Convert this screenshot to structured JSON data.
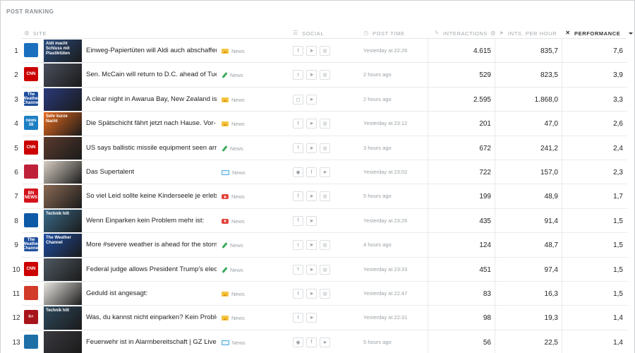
{
  "page_title": "POST RANKING",
  "columns": {
    "site": "SITE",
    "social": "SOCIAL",
    "post_time": "POST TIME",
    "interactions": "INTERACTIONS",
    "ints_per_hour": "INTS. PER HOUR",
    "performance": "PERFORMANCE"
  },
  "header_icons": {
    "site": "globe-icon",
    "social": "signal-icon",
    "post_time": "clock-icon",
    "interactions": "bolt-icon",
    "ints_per_hour": "send-icon",
    "performance": "cross-icon"
  },
  "rows": [
    {
      "rank": "1",
      "logo": "tagesschau",
      "logo_text": "",
      "logo_color": "#1a6fbf",
      "thumb_color": "#2b4c7e",
      "thumb_text": "Aldi macht Schluss mit Plastiktüten",
      "title": "Einweg-Papiertüten will Aldi auch abschaffen.",
      "type": "image",
      "type_label": "News",
      "social": [
        "f",
        "➤",
        "◎"
      ],
      "time": "Yesterday at 22:26",
      "interactions": "4.615",
      "iph": "835,7",
      "performance": "7,6"
    },
    {
      "rank": "2",
      "logo": "cnn",
      "logo_text": "CNN",
      "logo_color": "#cc0000",
      "thumb_color": "#4a4f5c",
      "thumb_text": "",
      "title": "Sen. McCain will return to D.C. ahead of Tues-",
      "type": "text",
      "type_label": "News",
      "social": [
        "t",
        "➤",
        "◎"
      ],
      "time": "2 hours ago",
      "interactions": "529",
      "iph": "823,5",
      "performance": "3,9"
    },
    {
      "rank": "3",
      "logo": "weather",
      "logo_text": "The Weather Channel",
      "logo_color": "#1f4f9c",
      "thumb_color": "#2a3a7a",
      "thumb_text": "",
      "title": "A clear night in Awarua Bay, New Zealand is a",
      "type": "image",
      "type_label": "News",
      "social": [
        "◻",
        "➤"
      ],
      "time": "2 hours ago",
      "interactions": "2.595",
      "iph": "1.868,0",
      "performance": "3,3"
    },
    {
      "rank": "4",
      "logo": "news38",
      "logo_text": "news 38",
      "logo_color": "#1c7fc4",
      "thumb_color": "#e86b1f",
      "thumb_text": "Sehr kurze Nacht",
      "title": "Die Spätschicht fährt jetzt nach Hause. Vor-",
      "type": "image",
      "type_label": "News",
      "social": [
        "f",
        "➤",
        "◎"
      ],
      "time": "Yesterday at 23:12",
      "interactions": "201",
      "iph": "47,0",
      "performance": "2,6"
    },
    {
      "rank": "5",
      "logo": "cnn",
      "logo_text": "CNN",
      "logo_color": "#cc0000",
      "thumb_color": "#5a3b2e",
      "thumb_text": "",
      "title": "US says ballistic missile equipment seen arriv-",
      "type": "text",
      "type_label": "News",
      "social": [
        "t",
        "➤",
        "◎"
      ],
      "time": "3 hours ago",
      "interactions": "672",
      "iph": "241,2",
      "performance": "2,4"
    },
    {
      "rank": "6",
      "logo": "supertalent",
      "logo_text": "",
      "logo_color": "#c0213a",
      "thumb_color": "#d9cfc4",
      "thumb_text": "",
      "title": "Das Supertalent",
      "type": "link",
      "type_label": "News",
      "social": [
        "◉",
        "f",
        "➤"
      ],
      "time": "Yesterday at 23:02",
      "interactions": "722",
      "iph": "157,0",
      "performance": "2,3"
    },
    {
      "rank": "7",
      "logo": "bildnews",
      "logo_text": "BN NEWS",
      "logo_color": "#d4121a",
      "thumb_color": "#8a6a55",
      "thumb_text": "",
      "title": "So viel Leid sollte keine Kinderseele je erleben!",
      "type": "video",
      "type_label": "News",
      "social": [
        "f",
        "➤",
        "◎"
      ],
      "time": "5 hours ago",
      "interactions": "199",
      "iph": "48,9",
      "performance": "1,7"
    },
    {
      "rank": "8",
      "logo": "autobild",
      "logo_text": "",
      "logo_color": "#0e5aa7",
      "thumb_color": "#3b6b8a",
      "thumb_text": "Technik hilt",
      "title": "Wenn Einparken kein Problem mehr ist:",
      "type": "video",
      "type_label": "News",
      "social": [
        "f",
        "➤"
      ],
      "time": "Yesterday at 23:26",
      "interactions": "435",
      "iph": "91,4",
      "performance": "1,5"
    },
    {
      "rank": "9",
      "logo": "weather",
      "logo_text": "The Weather Channel",
      "logo_color": "#1f4f9c",
      "thumb_color": "#1e4ea3",
      "thumb_text": "The Weather Channel",
      "title": "More #severe weather is ahead for the storm-",
      "type": "text",
      "type_label": "News",
      "social": [
        "t",
        "➤",
        "◎"
      ],
      "time": "4 hours ago",
      "interactions": "124",
      "iph": "48,7",
      "performance": "1,5"
    },
    {
      "rank": "10",
      "logo": "cnn",
      "logo_text": "CNN",
      "logo_color": "#cc0000",
      "thumb_color": "#4f5a63",
      "thumb_text": "",
      "title": "Federal judge allows President Trump's election",
      "type": "text",
      "type_label": "News",
      "social": [
        "t",
        "➤",
        "◎"
      ],
      "time": "Yesterday at 23:33",
      "interactions": "451",
      "iph": "97,4",
      "performance": "1,5"
    },
    {
      "rank": "11",
      "logo": "other",
      "logo_text": "",
      "logo_color": "#d23a2a",
      "thumb_color": "#e9e6e1",
      "thumb_text": "",
      "title": "Geduld ist angesagt:",
      "type": "image",
      "type_label": "News",
      "social": [
        "f",
        "➤",
        "◎"
      ],
      "time": "Yesterday at 22:47",
      "interactions": "83",
      "iph": "16,3",
      "performance": "1,5"
    },
    {
      "rank": "12",
      "logo": "hplus",
      "logo_text": "h+",
      "logo_color": "#a8141b",
      "thumb_color": "#2f4a5e",
      "thumb_text": "Technik hilt",
      "title": "Was, du kannst nicht einparken? Kein Problem:",
      "type": "image",
      "type_label": "News",
      "social": [
        "f",
        "➤"
      ],
      "time": "Yesterday at 22:31",
      "interactions": "98",
      "iph": "19,3",
      "performance": "1,4"
    },
    {
      "rank": "13",
      "logo": "gz",
      "logo_text": "",
      "logo_color": "#1d6fa8",
      "thumb_color": "#3a3a40",
      "thumb_text": "",
      "title": "Feuerwehr ist in Alarmbereitschaft | GZ Live",
      "type": "link",
      "type_label": "News",
      "social": [
        "◉",
        "f",
        "➤"
      ],
      "time": "5 hours ago",
      "interactions": "56",
      "iph": "22,5",
      "performance": "1,4"
    }
  ]
}
